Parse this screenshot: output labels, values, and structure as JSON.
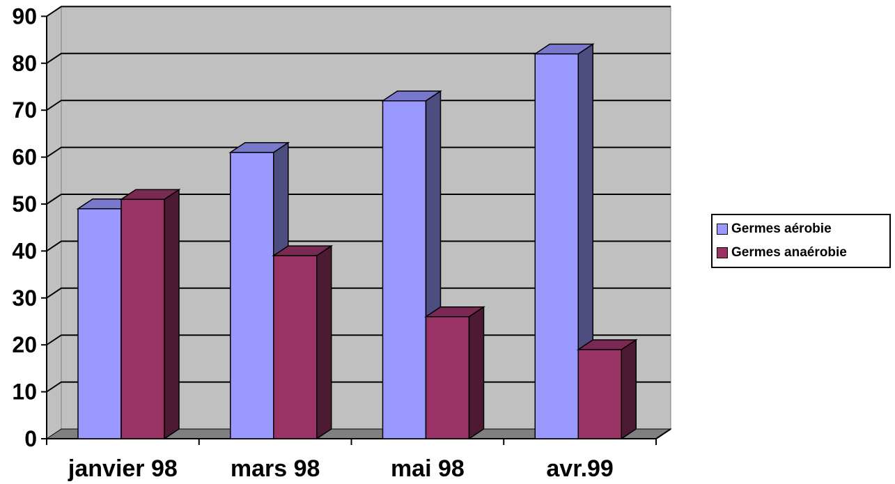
{
  "chart_data": {
    "type": "bar",
    "categories": [
      "janvier 98",
      "mars 98",
      "mai 98",
      "avr.99"
    ],
    "series": [
      {
        "name": "Germes aérobie",
        "values": [
          49,
          61,
          72,
          82
        ],
        "color": "#9999ff",
        "side_color": "#4d4d80",
        "top_color": "#7878cc"
      },
      {
        "name": "Germes anaérobie",
        "values": [
          51,
          39,
          26,
          19
        ],
        "color": "#993366",
        "side_color": "#4d1a33",
        "top_color": "#7a2952"
      }
    ],
    "y_ticks": [
      "0",
      "10",
      "20",
      "30",
      "40",
      "50",
      "60",
      "70",
      "80",
      "90"
    ],
    "ylim": [
      0,
      90
    ],
    "grid": true,
    "three_d": true,
    "wall_color": "#c0c0c0",
    "floor_color": "#808080",
    "legend_position": "right"
  }
}
